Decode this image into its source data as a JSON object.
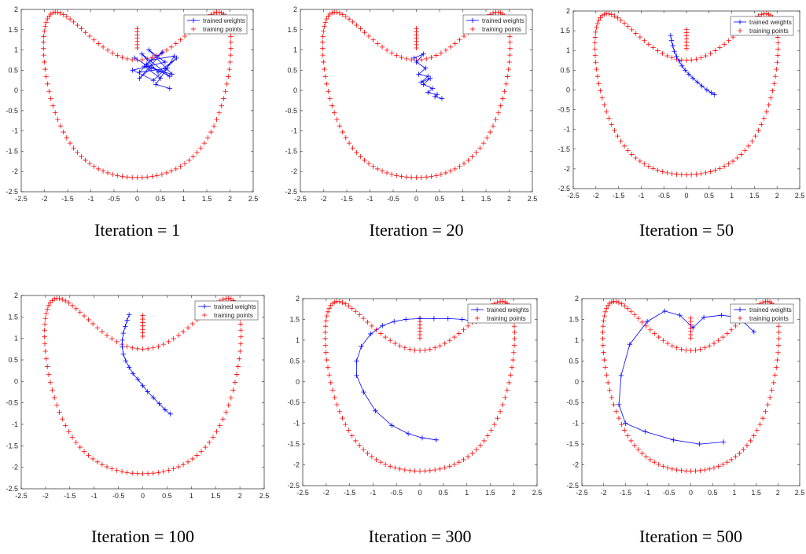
{
  "colors": {
    "trained": "#0000ff",
    "training": "#ff0000",
    "axis": "#262626",
    "background": "#ffffff"
  },
  "chart_data": [
    {
      "type": "line",
      "caption": "Iteration = 1",
      "series": [
        {
          "name": "trained weights",
          "style": "line-plus",
          "color": "#0000ff",
          "x": [
            -0.05,
            0.3,
            0.05,
            0.55,
            0.2,
            0.7,
            0.1,
            0.45,
            0.85,
            0.35,
            -0.1,
            0.6,
            0.25,
            0.75,
            0.15,
            0.5,
            0.8,
            0.3,
            0.05,
            0.65,
            0.4,
            0.7
          ],
          "y": [
            0.8,
            0.55,
            0.3,
            0.95,
            0.65,
            0.35,
            0.9,
            0.45,
            0.8,
            0.25,
            0.5,
            0.7,
            1.0,
            0.4,
            0.6,
            0.3,
            0.85,
            0.75,
            0.45,
            0.55,
            0.15,
            0.05
          ]
        },
        {
          "name": "training points",
          "style": "plus",
          "color": "#ff0000",
          "shape": "heart"
        }
      ],
      "xlim": [
        -2.5,
        2.5
      ],
      "ylim": [
        -2.5,
        2
      ],
      "xticks": [
        "-2.5",
        "-2",
        "-1.5",
        "-1",
        "-0.5",
        "0",
        "0.5",
        "1",
        "1.5",
        "2",
        "2.5"
      ],
      "yticks": [
        "-2.5",
        "-2",
        "-1.5",
        "-1",
        "-0.5",
        "0",
        "0.5",
        "1",
        "1.5",
        "2"
      ],
      "legend_position": "top-right",
      "grid": false
    },
    {
      "type": "line",
      "caption": "Iteration = 20",
      "series": [
        {
          "name": "trained weights",
          "style": "line-plus",
          "color": "#0000ff",
          "x": [
            -0.05,
            0.15,
            0.0,
            0.2,
            0.05,
            0.25,
            0.1,
            0.3,
            0.15,
            0.35,
            0.25,
            0.45,
            0.4,
            0.55
          ],
          "y": [
            0.8,
            0.9,
            0.7,
            0.55,
            0.4,
            0.35,
            0.2,
            0.3,
            0.15,
            0.05,
            -0.05,
            -0.1,
            -0.15,
            -0.2
          ]
        },
        {
          "name": "training points",
          "style": "plus",
          "color": "#ff0000",
          "shape": "heart"
        }
      ],
      "xlim": [
        -2.5,
        2.5
      ],
      "ylim": [
        -2.5,
        2
      ],
      "xticks": [
        "-2.5",
        "-2",
        "-1.5",
        "-1",
        "-0.5",
        "0",
        "0.5",
        "1",
        "1.5",
        "2",
        "2.5"
      ],
      "yticks": [
        "-2.5",
        "-2",
        "-1.5",
        "-1",
        "-0.5",
        "0",
        "0.5",
        "1",
        "1.5",
        "2"
      ],
      "legend_position": "top-right",
      "grid": false
    },
    {
      "type": "line",
      "caption": "Iteration = 50",
      "series": [
        {
          "name": "trained weights",
          "style": "line-plus",
          "color": "#0000ff",
          "x": [
            -0.35,
            -0.33,
            -0.3,
            -0.27,
            -0.22,
            -0.16,
            -0.1,
            -0.03,
            0.05,
            0.14,
            0.24,
            0.34,
            0.45,
            0.55,
            0.62
          ],
          "y": [
            1.38,
            1.25,
            1.12,
            0.98,
            0.85,
            0.73,
            0.61,
            0.5,
            0.4,
            0.3,
            0.2,
            0.1,
            0.0,
            -0.07,
            -0.12
          ]
        },
        {
          "name": "training points",
          "style": "plus",
          "color": "#ff0000",
          "shape": "heart"
        }
      ],
      "xlim": [
        -2.5,
        2.5
      ],
      "ylim": [
        -2.5,
        2
      ],
      "xticks": [
        "-2.5",
        "-2",
        "-1.5",
        "-1",
        "-0.5",
        "0",
        "0.5",
        "1",
        "1.5",
        "2",
        "2.5"
      ],
      "yticks": [
        "-2.5",
        "-2",
        "-1.5",
        "-1",
        "-0.5",
        "0",
        "0.5",
        "1",
        "1.5",
        "2"
      ],
      "legend_position": "top-right",
      "grid": false
    },
    {
      "type": "line",
      "caption": "Iteration = 100",
      "series": [
        {
          "name": "trained weights",
          "style": "line-plus",
          "color": "#0000ff",
          "x": [
            -0.28,
            -0.32,
            -0.36,
            -0.4,
            -0.42,
            -0.42,
            -0.4,
            -0.35,
            -0.28,
            -0.2,
            -0.1,
            0.0,
            0.1,
            0.22,
            0.34,
            0.46,
            0.57
          ],
          "y": [
            1.55,
            1.42,
            1.28,
            1.12,
            0.96,
            0.8,
            0.64,
            0.48,
            0.33,
            0.18,
            0.05,
            -0.1,
            -0.24,
            -0.38,
            -0.52,
            -0.66,
            -0.76
          ]
        },
        {
          "name": "training points",
          "style": "plus",
          "color": "#ff0000",
          "shape": "heart"
        }
      ],
      "xlim": [
        -2.5,
        2.5
      ],
      "ylim": [
        -2.5,
        2
      ],
      "xticks": [
        "-2.5",
        "-2",
        "-1.5",
        "-1",
        "-0.5",
        "0",
        "0.5",
        "1",
        "1.5",
        "2",
        "2.5"
      ],
      "yticks": [
        "-2.5",
        "-2",
        "-1.5",
        "-1",
        "-0.5",
        "0",
        "0.5",
        "1",
        "1.5",
        "2"
      ],
      "legend_position": "top-right",
      "grid": false
    },
    {
      "type": "line",
      "caption": "Iteration = 300",
      "series": [
        {
          "name": "trained weights",
          "style": "line-plus",
          "color": "#0000ff",
          "x": [
            1.2,
            0.9,
            0.6,
            0.3,
            0.0,
            -0.3,
            -0.55,
            -0.8,
            -1.05,
            -1.25,
            -1.35,
            -1.35,
            -1.2,
            -0.95,
            -0.6,
            -0.25,
            0.05,
            0.35
          ],
          "y": [
            1.45,
            1.5,
            1.52,
            1.52,
            1.52,
            1.5,
            1.45,
            1.35,
            1.15,
            0.85,
            0.5,
            0.15,
            -0.25,
            -0.7,
            -1.05,
            -1.25,
            -1.35,
            -1.4
          ]
        },
        {
          "name": "training points",
          "style": "plus",
          "color": "#ff0000",
          "shape": "heart"
        }
      ],
      "xlim": [
        -2.5,
        2.5
      ],
      "ylim": [
        -2.5,
        2
      ],
      "xticks": [
        "-2.5",
        "-2",
        "-1.5",
        "-1",
        "-0.5",
        "0",
        "0.5",
        "1",
        "1.5",
        "2",
        "2.5"
      ],
      "yticks": [
        "-2.5",
        "-2",
        "-1.5",
        "-1",
        "-0.5",
        "0",
        "0.5",
        "1",
        "1.5",
        "2"
      ],
      "legend_position": "top-right",
      "grid": false
    },
    {
      "type": "line",
      "caption": "Iteration = 500",
      "series": [
        {
          "name": "trained weights",
          "style": "line-plus",
          "color": "#0000ff",
          "x": [
            1.45,
            1.1,
            0.7,
            0.3,
            0.05,
            -0.25,
            -0.6,
            -1.0,
            -1.4,
            -1.6,
            -1.65,
            -1.5,
            -1.05,
            -0.4,
            0.2,
            0.75
          ],
          "y": [
            1.2,
            1.55,
            1.6,
            1.55,
            1.3,
            1.6,
            1.7,
            1.45,
            0.9,
            0.15,
            -0.55,
            -1.0,
            -1.2,
            -1.4,
            -1.5,
            -1.45
          ]
        },
        {
          "name": "training points",
          "style": "plus",
          "color": "#ff0000",
          "shape": "heart"
        }
      ],
      "xlim": [
        -2.5,
        2.5
      ],
      "ylim": [
        -2.5,
        2
      ],
      "xticks": [
        "-2.5",
        "-2",
        "-1.5",
        "-1",
        "-0.5",
        "0",
        "0.5",
        "1",
        "1.5",
        "2",
        "2.5"
      ],
      "yticks": [
        "-2.5",
        "-2",
        "-1.5",
        "-1",
        "-0.5",
        "0",
        "0.5",
        "1",
        "1.5",
        "2"
      ],
      "legend_position": "top-right",
      "grid": false
    }
  ]
}
